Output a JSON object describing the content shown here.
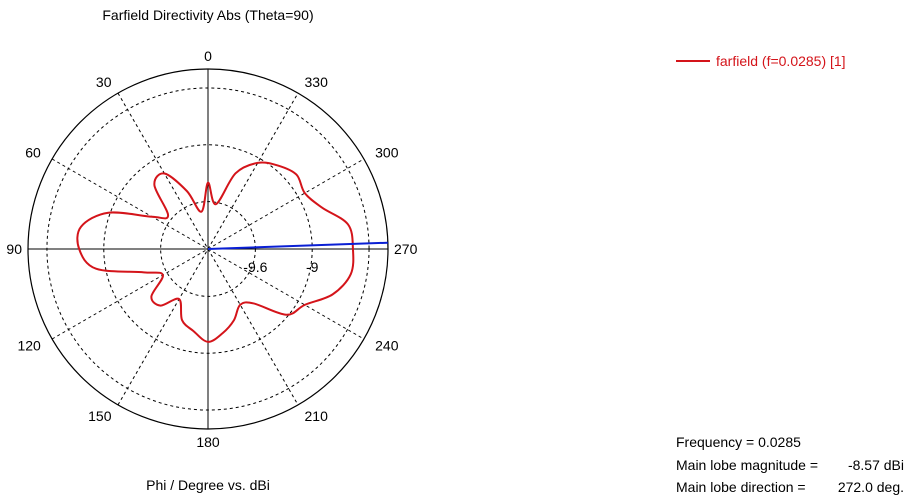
{
  "chart_data": {
    "type": "polar",
    "title": "Farfield Directivity Abs (Theta=90)",
    "xlabel": "Phi / Degree vs. dBi",
    "angle_ticks": [
      "0",
      "30",
      "60",
      "90",
      "120",
      "150",
      "180",
      "210",
      "240",
      "270",
      "300",
      "330"
    ],
    "radial_ticks": [
      {
        "label": "-9.6",
        "value": -9.6
      },
      {
        "label": "-9",
        "value": -9
      }
    ],
    "radial_range": [
      -10.1,
      -8.2
    ],
    "angle_direction": "counterclockwise",
    "zero_direction": "top",
    "grid": true,
    "legend_position": "top-right",
    "series": [
      {
        "name": "farfield (f=0.0285) [1]",
        "color": "#d4141a",
        "phi": [
          0,
          10,
          20,
          30,
          40,
          50,
          60,
          70,
          80,
          90,
          100,
          110,
          120,
          130,
          140,
          150,
          160,
          170,
          180,
          190,
          200,
          210,
          220,
          230,
          240,
          250,
          260,
          270,
          280,
          290,
          300,
          310,
          320,
          330,
          340,
          350,
          360
        ],
        "value": [
          -9.4,
          -9.7,
          -9.45,
          -9.18,
          -9.22,
          -9.55,
          -9.42,
          -8.98,
          -8.74,
          -8.74,
          -8.9,
          -9.38,
          -9.55,
          -9.32,
          -9.32,
          -9.49,
          -9.3,
          -9.22,
          -9.12,
          -9.2,
          -9.3,
          -9.42,
          -9.35,
          -9.02,
          -8.92,
          -8.7,
          -8.57,
          -8.57,
          -8.6,
          -8.82,
          -8.92,
          -8.88,
          -8.95,
          -9.05,
          -9.25,
          -9.62,
          -9.4
        ]
      }
    ],
    "main_lobe_marker": {
      "phi": 272.0,
      "color": "#0a1fd4"
    }
  },
  "info": {
    "frequency_label": "Frequency = 0.0285",
    "magnitude_label": "Main lobe magnitude =",
    "magnitude_value": "-8.57 dBi",
    "direction_label": "Main lobe direction =",
    "direction_value": "272.0 deg."
  }
}
